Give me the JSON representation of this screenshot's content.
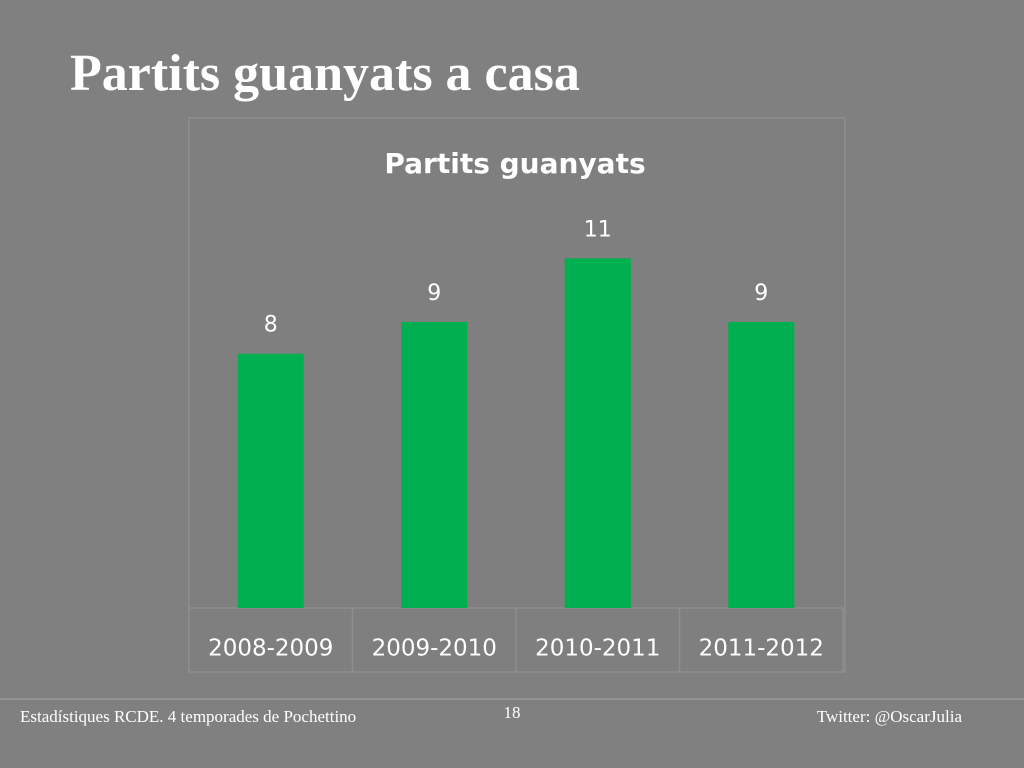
{
  "slide_title": "Partits guanyats a casa",
  "chart_data": {
    "type": "bar",
    "title": "Partits guanyats",
    "categories": [
      "2008-2009",
      "2009-2010",
      "2010-2011",
      "2011-2012"
    ],
    "values": [
      8,
      9,
      11,
      9
    ],
    "color": "#00b050",
    "ylim": [
      0,
      14
    ],
    "data_labels": true
  },
  "footer": {
    "left": "Estadístiques RCDE. 4 temporades de Pochettino",
    "page": "18",
    "right": "Twitter: @OscarJulia"
  }
}
